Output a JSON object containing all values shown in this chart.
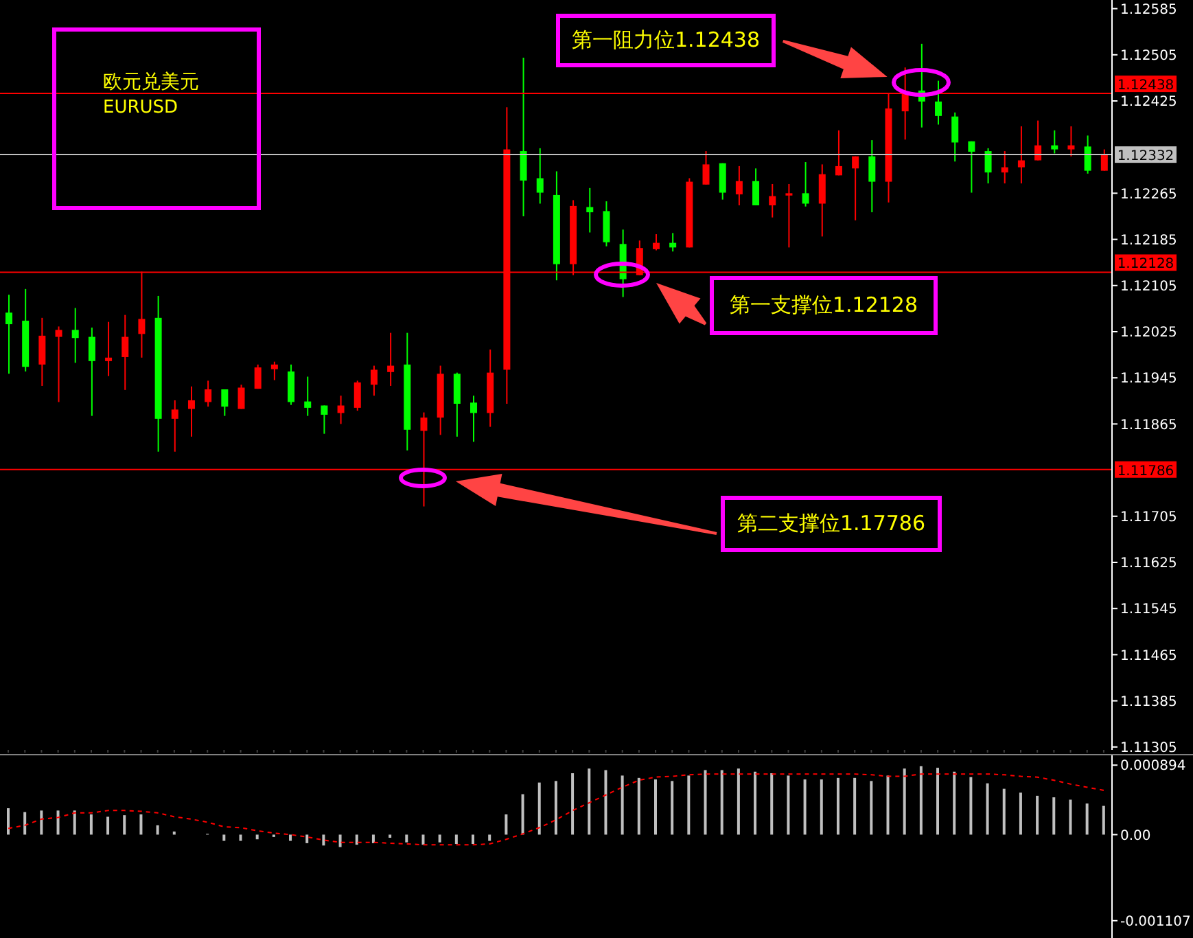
{
  "chart_data": [
    {
      "type": "candlestick",
      "categories": [
        null,
        null,
        null,
        null,
        null,
        null,
        null,
        null,
        null,
        null,
        null,
        null,
        null,
        null,
        null,
        null,
        null,
        null,
        null,
        null,
        null,
        null,
        null,
        null,
        null,
        null,
        null,
        null,
        null,
        null,
        null,
        null,
        null,
        null,
        null,
        null,
        null,
        null,
        null,
        null,
        null,
        null,
        null,
        null,
        null,
        null,
        null,
        null,
        null,
        null,
        null,
        null,
        null,
        null,
        null,
        null,
        null,
        null,
        null,
        null,
        null,
        null,
        null,
        null,
        null,
        null,
        null
      ],
      "ohlc": [
        [
          1.12058,
          1.12089,
          1.11952,
          1.12038
        ],
        [
          1.12044,
          1.12099,
          1.11956,
          1.11964
        ],
        [
          1.11968,
          1.12049,
          1.11931,
          1.12018
        ],
        [
          1.12016,
          1.12034,
          1.11903,
          1.12028
        ],
        [
          1.12028,
          1.12066,
          1.11971,
          1.12014
        ],
        [
          1.12016,
          1.12032,
          1.11879,
          1.11974
        ],
        [
          1.11974,
          1.12042,
          1.11948,
          1.1198
        ],
        [
          1.11981,
          1.12054,
          1.11924,
          1.12016
        ],
        [
          1.12021,
          1.12129,
          1.1198,
          1.12047
        ],
        [
          1.12049,
          1.12087,
          1.11817,
          1.11874
        ],
        [
          1.11874,
          1.11906,
          1.11817,
          1.1189
        ],
        [
          1.11891,
          1.1193,
          1.11843,
          1.11906
        ],
        [
          1.11903,
          1.1194,
          1.11895,
          1.11925
        ],
        [
          1.11925,
          1.11925,
          1.11879,
          1.11895
        ],
        [
          1.11891,
          1.11933,
          1.11891,
          1.11928
        ],
        [
          1.11926,
          1.11968,
          1.11926,
          1.11963
        ],
        [
          1.1196,
          1.11973,
          1.11941,
          1.11968
        ],
        [
          1.11956,
          1.11968,
          1.11898,
          1.11903
        ],
        [
          1.11904,
          1.11947,
          1.11879,
          1.11893
        ],
        [
          1.11897,
          1.11897,
          1.11848,
          1.11881
        ],
        [
          1.11884,
          1.11914,
          1.11865,
          1.11897
        ],
        [
          1.11893,
          1.1194,
          1.11888,
          1.11937
        ],
        [
          1.11933,
          1.11966,
          1.11914,
          1.11959
        ],
        [
          1.11955,
          1.12023,
          1.11931,
          1.11966
        ],
        [
          1.11968,
          1.12023,
          1.11819,
          1.11855
        ],
        [
          1.11853,
          1.11885,
          1.11722,
          1.11876
        ],
        [
          1.11876,
          1.11966,
          1.11846,
          1.11952
        ],
        [
          1.11952,
          1.11954,
          1.11843,
          1.119
        ],
        [
          1.11902,
          1.11914,
          1.11834,
          1.11884
        ],
        [
          1.11884,
          1.11994,
          1.1186,
          1.11954
        ],
        [
          1.11959,
          1.12414,
          1.119,
          1.12341
        ],
        [
          1.12338,
          1.125,
          1.12225,
          1.12287
        ],
        [
          1.12291,
          1.12343,
          1.12247,
          1.12266
        ],
        [
          1.12262,
          1.12303,
          1.12114,
          1.12142
        ],
        [
          1.12142,
          1.12253,
          1.12123,
          1.12243
        ],
        [
          1.12241,
          1.12274,
          1.12197,
          1.12232
        ],
        [
          1.12234,
          1.12251,
          1.12173,
          1.1218
        ],
        [
          1.12177,
          1.12202,
          1.12085,
          1.12116
        ],
        [
          1.12123,
          1.12183,
          1.12123,
          1.1217
        ],
        [
          1.12168,
          1.12194,
          1.12166,
          1.12179
        ],
        [
          1.12179,
          1.12196,
          1.12164,
          1.12171
        ],
        [
          1.12171,
          1.12291,
          1.12171,
          1.12285
        ],
        [
          1.1228,
          1.12338,
          1.1228,
          1.12315
        ],
        [
          1.12317,
          1.12317,
          1.12254,
          1.12266
        ],
        [
          1.12263,
          1.12312,
          1.12244,
          1.12286
        ],
        [
          1.12286,
          1.12308,
          1.12244,
          1.12244
        ],
        [
          1.12244,
          1.12281,
          1.12223,
          1.1226
        ],
        [
          1.12261,
          1.12281,
          1.12171,
          1.12265
        ],
        [
          1.12265,
          1.12319,
          1.12242,
          1.12247
        ],
        [
          1.12247,
          1.12315,
          1.1219,
          1.12298
        ],
        [
          1.12296,
          1.12374,
          1.12296,
          1.12312
        ],
        [
          1.12308,
          1.12329,
          1.12218,
          1.12329
        ],
        [
          1.12329,
          1.12357,
          1.12232,
          1.12285
        ],
        [
          1.12285,
          1.12439,
          1.12249,
          1.12412
        ],
        [
          1.12407,
          1.12483,
          1.12358,
          1.12438
        ],
        [
          1.12443,
          1.12524,
          1.12379,
          1.12424
        ],
        [
          1.12424,
          1.1246,
          1.12384,
          1.12399
        ],
        [
          1.12398,
          1.12405,
          1.1232,
          1.12353
        ],
        [
          1.12355,
          1.12355,
          1.12266,
          1.12337
        ],
        [
          1.12338,
          1.12343,
          1.12282,
          1.12301
        ],
        [
          1.12301,
          1.12338,
          1.12282,
          1.1231
        ],
        [
          1.1231,
          1.12381,
          1.12282,
          1.12322
        ],
        [
          1.12322,
          1.12391,
          1.12322,
          1.12348
        ],
        [
          1.12348,
          1.12374,
          1.12334,
          1.12341
        ],
        [
          1.12341,
          1.12381,
          1.12329,
          1.12348
        ],
        [
          1.12346,
          1.12365,
          1.12299,
          1.12304
        ],
        [
          1.12304,
          1.12341,
          1.12304,
          1.12332
        ]
      ],
      "colors": [
        "#00ff00",
        "#00ff00",
        "#ff0000",
        "#ff0000",
        "#00ff00",
        "#00ff00",
        "#ff0000",
        "#ff0000",
        "#ff0000",
        "#00ff00",
        "#ff0000",
        "#ff0000",
        "#ff0000",
        "#00ff00",
        "#ff0000",
        "#ff0000",
        "#ff0000",
        "#00ff00",
        "#00ff00",
        "#00ff00",
        "#ff0000",
        "#ff0000",
        "#ff0000",
        "#ff0000",
        "#00ff00",
        "#ff0000",
        "#ff0000",
        "#00ff00",
        "#00ff00",
        "#ff0000",
        "#ff0000",
        "#00ff00",
        "#00ff00",
        "#00ff00",
        "#ff0000",
        "#00ff00",
        "#00ff00",
        "#00ff00",
        "#ff0000",
        "#ff0000",
        "#00ff00",
        "#ff0000",
        "#ff0000",
        "#00ff00",
        "#ff0000",
        "#00ff00",
        "#ff0000",
        "#ff0000",
        "#00ff00",
        "#ff0000",
        "#ff0000",
        "#ff0000",
        "#00ff00",
        "#ff0000",
        "#ff0000",
        "#00ff00",
        "#00ff00",
        "#00ff00",
        "#00ff00",
        "#00ff00",
        "#ff0000",
        "#ff0000",
        "#ff0000",
        "#00ff00",
        "#ff0000",
        "#00ff00",
        "#ff0000"
      ],
      "ylim": [
        1.113,
        1.126
      ],
      "yticks": [
        1.12585,
        1.12505,
        1.12425,
        1.12265,
        1.12185,
        1.12105,
        1.12025,
        1.11945,
        1.11865,
        1.11705,
        1.11625,
        1.11545,
        1.11465,
        1.11385,
        1.11305
      ],
      "tick_labels": "y",
      "ref_lines": [
        {
          "axis": "y",
          "value": 1.12438,
          "label": "1.12438",
          "color": "#ff0000"
        },
        {
          "axis": "y",
          "value": 1.12332,
          "label": "1.12332",
          "color": "#c0c0c0"
        },
        {
          "axis": "y",
          "value": 1.12128,
          "label": "1.12128",
          "color": "#ff0000"
        },
        {
          "axis": "y",
          "value": 1.11786,
          "label": "1.11786",
          "color": "#ff0000"
        }
      ],
      "annotations": [
        "欧元兑美元",
        "EURUSD",
        "第一阻力位1.12438",
        "第一支撑位1.12128",
        "第二支撑位1.17786"
      ]
    },
    {
      "type": "bar",
      "categories": [
        null,
        null,
        null,
        null,
        null,
        null,
        null,
        null,
        null,
        null,
        null,
        null,
        null,
        null,
        null,
        null,
        null,
        null,
        null,
        null,
        null,
        null,
        null,
        null,
        null,
        null,
        null,
        null,
        null,
        null,
        null,
        null,
        null,
        null,
        null,
        null,
        null,
        null,
        null,
        null,
        null,
        null,
        null,
        null,
        null,
        null,
        null,
        null,
        null,
        null,
        null,
        null,
        null,
        null,
        null,
        null,
        null,
        null,
        null,
        null,
        null,
        null,
        null,
        null,
        null,
        null,
        null
      ],
      "series": [
        {
          "type": "bar",
          "color": "#c0c0c0",
          "values": [
            0.00034,
            0.00029,
            0.00031,
            0.00031,
            0.00031,
            0.00026,
            0.00023,
            0.00025,
            0.00026,
            0.00012,
            4e-05,
            0,
            1e-05,
            -8e-05,
            -8e-05,
            -6e-05,
            -3e-05,
            -8e-05,
            -0.00011,
            -0.00014,
            -0.00016,
            -0.00013,
            -0.00011,
            -4e-05,
            -0.0001,
            -0.00013,
            -0.0001,
            -0.00012,
            -0.00012,
            -8e-05,
            0.00026,
            0.00052,
            0.00067,
            0.00069,
            0.00079,
            0.00085,
            0.00083,
            0.00076,
            0.00073,
            0.00071,
            0.00069,
            0.00076,
            0.00083,
            0.00083,
            0.00085,
            0.00081,
            0.00079,
            0.00076,
            0.00071,
            0.00071,
            0.00073,
            0.00073,
            0.00069,
            0.00076,
            0.00085,
            0.00088,
            0.00086,
            0.00081,
            0.00074,
            0.00066,
            0.00059,
            0.00054,
            0.0005,
            0.00048,
            0.00045,
            0.0004,
            0.00037
          ]
        },
        {
          "type": "line",
          "color": "#ff0000",
          "line_style": "dashed",
          "values": [
            8e-05,
            0.00012,
            0.0002,
            0.00022,
            0.00028,
            0.00028,
            0.00031,
            0.00031,
            0.0003,
            0.00028,
            0.00023,
            0.0002,
            0.00016,
            0.0001,
            9e-05,
            5e-05,
            2e-05,
            0,
            -3e-05,
            -7e-05,
            -0.0001,
            -0.0001,
            -0.0001,
            -0.00011,
            -0.00012,
            -0.00013,
            -0.00013,
            -0.00013,
            -0.00013,
            -0.00012,
            -6e-05,
            1e-05,
            9e-05,
            0.00019,
            0.00031,
            0.00041,
            0.00051,
            0.00061,
            0.0007,
            0.00074,
            0.00075,
            0.00077,
            0.00078,
            0.00078,
            0.00078,
            0.00078,
            0.00078,
            0.00078,
            0.00078,
            0.00078,
            0.00078,
            0.00078,
            0.00077,
            0.00075,
            0.00075,
            0.00078,
            0.00078,
            0.00078,
            0.00078,
            0.00078,
            0.00077,
            0.00075,
            0.00074,
            0.0007,
            0.00065,
            0.00061,
            0.00057
          ]
        }
      ],
      "ylim": [
        -0.00133,
        0.00102
      ],
      "yticks": [
        0.000894,
        {
          "value": 0,
          "label": "0.00"
        },
        -0.001107
      ],
      "tick_labels": "y"
    }
  ]
}
